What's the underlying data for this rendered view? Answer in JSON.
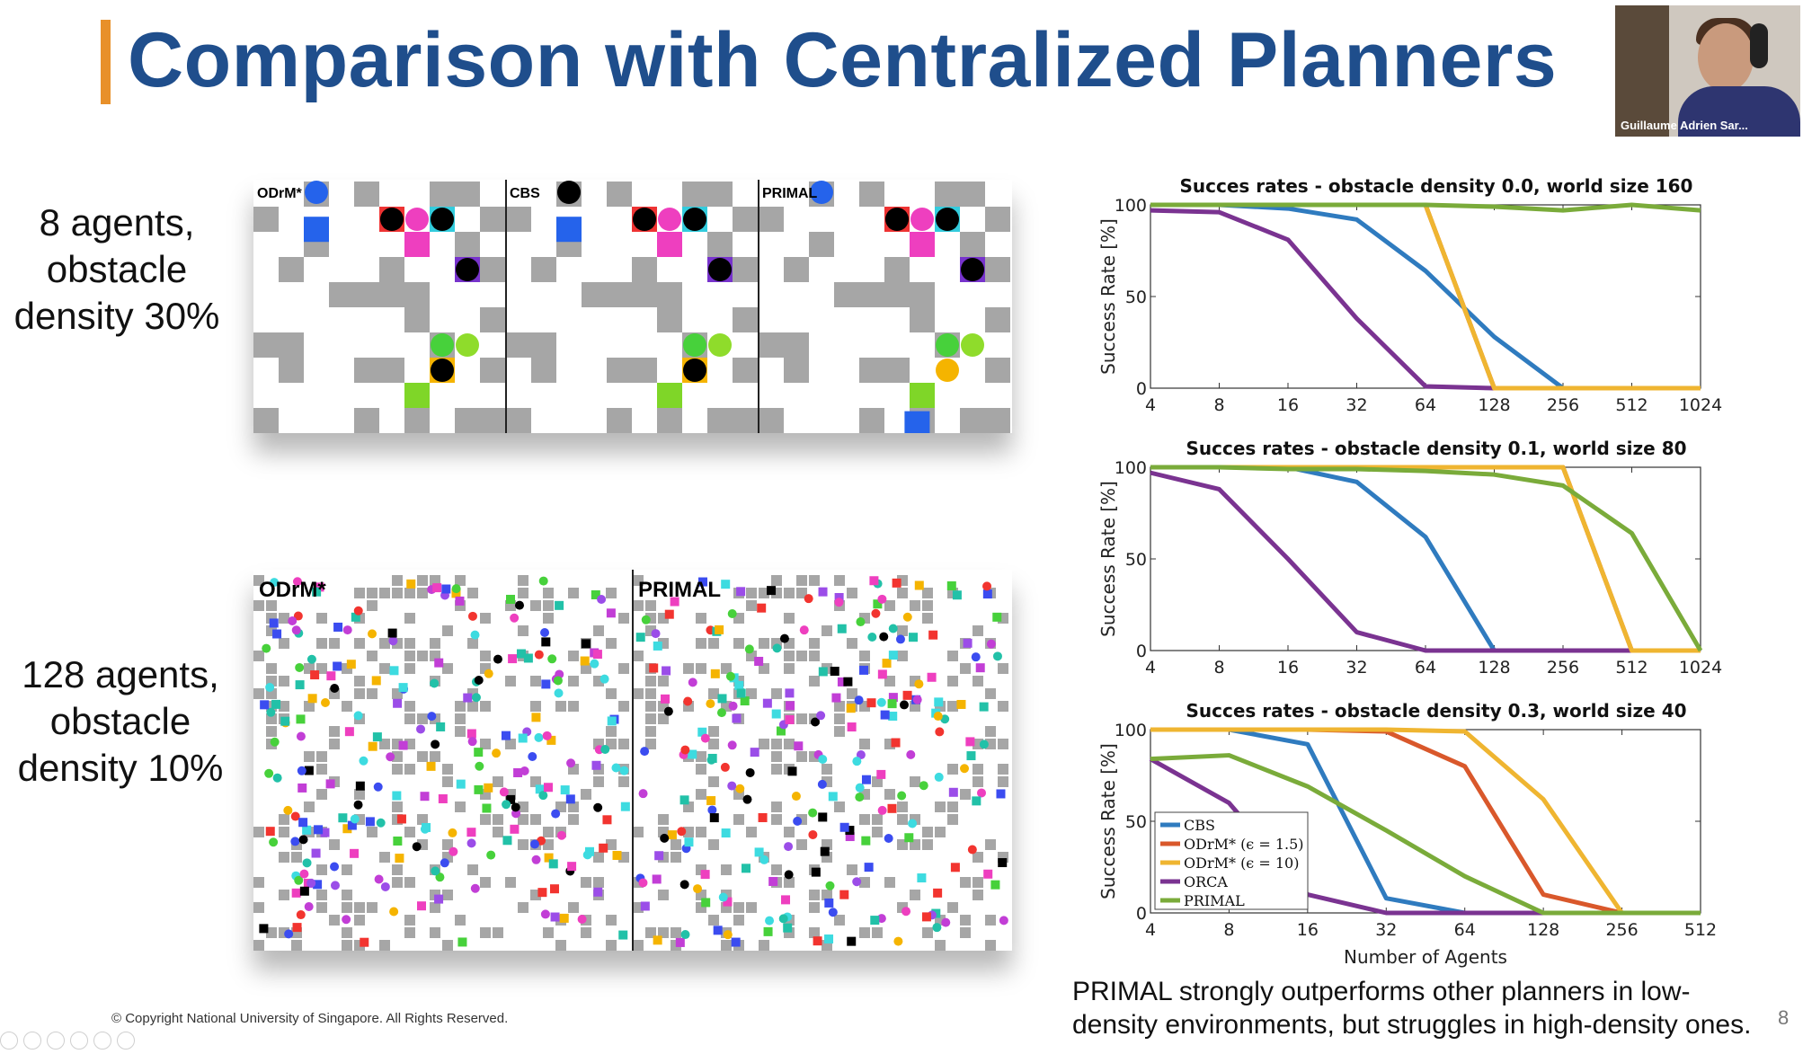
{
  "slide": {
    "title": "Comparison with Centralized Planners",
    "label_top": [
      "8 agents,",
      "obstacle",
      "density 30%"
    ],
    "label_bottom": [
      "128 agents,",
      "obstacle",
      "density 10%"
    ],
    "panel_top_labels": [
      "ODrM*",
      "CBS",
      "PRIMAL"
    ],
    "panel_bottom_labels": [
      "ODrM*",
      "PRIMAL"
    ],
    "copyright": "© Copyright National University of Singapore. All Rights Reserved.",
    "caption": "PRIMAL strongly outperforms other planners in low-density environments, but struggles in high-density ones.",
    "page_number": "8",
    "presenter_name": "Guillaume Adrien Sar..."
  },
  "colors": {
    "title": "#1f4e8c",
    "accent": "#e8902a",
    "CBS": "#2f7bbf",
    "ODrM_1_5": "#d9582b",
    "ODrM_10": "#efb531",
    "ORCA": "#7a3391",
    "PRIMAL": "#7aab3a"
  },
  "chart_data": [
    {
      "type": "line",
      "title": "Succes rates - obstacle density 0.0, world size 160",
      "ylabel": "Success Rate [%]",
      "xlabel": "",
      "x": [
        4,
        8,
        16,
        32,
        64,
        128,
        256,
        512,
        1024
      ],
      "ylim": [
        0,
        100
      ],
      "series": [
        {
          "key": "CBS",
          "values": [
            100,
            100,
            98,
            92,
            64,
            28,
            0,
            0,
            0
          ]
        },
        {
          "key": "ODrM_1_5",
          "values": [
            100,
            100,
            100,
            100,
            100,
            0,
            0,
            0,
            0
          ]
        },
        {
          "key": "ODrM_10",
          "values": [
            100,
            100,
            100,
            100,
            100,
            0,
            0,
            0,
            0
          ]
        },
        {
          "key": "ORCA",
          "values": [
            97,
            96,
            81,
            38,
            1,
            0,
            0,
            0,
            0
          ]
        },
        {
          "key": "PRIMAL",
          "values": [
            100,
            100,
            100,
            100,
            100,
            99,
            97,
            100,
            97
          ]
        }
      ]
    },
    {
      "type": "line",
      "title": "Succes rates - obstacle density 0.1, world size 80",
      "ylabel": "Success Rate [%]",
      "xlabel": "",
      "x": [
        4,
        8,
        16,
        32,
        64,
        128,
        256,
        512,
        1024
      ],
      "ylim": [
        0,
        100
      ],
      "series": [
        {
          "key": "CBS",
          "values": [
            100,
            100,
            100,
            92,
            62,
            0,
            0,
            0,
            0
          ]
        },
        {
          "key": "ODrM_1_5",
          "values": [
            100,
            100,
            100,
            100,
            100,
            100,
            100,
            0,
            0
          ]
        },
        {
          "key": "ODrM_10",
          "values": [
            100,
            100,
            100,
            100,
            100,
            100,
            100,
            0,
            0
          ]
        },
        {
          "key": "ORCA",
          "values": [
            97,
            88,
            50,
            10,
            0,
            0,
            0,
            0,
            0
          ]
        },
        {
          "key": "PRIMAL",
          "values": [
            100,
            100,
            99,
            99,
            98,
            96,
            90,
            64,
            0
          ]
        }
      ]
    },
    {
      "type": "line",
      "title": "Succes rates - obstacle density 0.3, world size 40",
      "ylabel": "Success Rate [%]",
      "xlabel": "Number of Agents",
      "x": [
        4,
        8,
        16,
        32,
        64,
        128,
        256,
        512
      ],
      "ylim": [
        0,
        100
      ],
      "legend_position": "bottom-left",
      "legend": [
        "CBS",
        "ODrM* (ϵ = 1.5)",
        "ODrM* (ϵ = 10)",
        "ORCA",
        "PRIMAL"
      ],
      "series": [
        {
          "key": "CBS",
          "values": [
            100,
            100,
            92,
            8,
            0,
            0,
            0,
            0
          ]
        },
        {
          "key": "ODrM_1_5",
          "values": [
            100,
            100,
            100,
            99,
            80,
            10,
            0,
            0
          ]
        },
        {
          "key": "ODrM_10",
          "values": [
            100,
            100,
            100,
            100,
            99,
            62,
            0,
            0
          ]
        },
        {
          "key": "ORCA",
          "values": [
            84,
            60,
            10,
            0,
            0,
            0,
            0,
            0
          ]
        },
        {
          "key": "PRIMAL",
          "values": [
            84,
            86,
            69,
            45,
            20,
            0,
            0,
            0
          ]
        }
      ]
    }
  ]
}
